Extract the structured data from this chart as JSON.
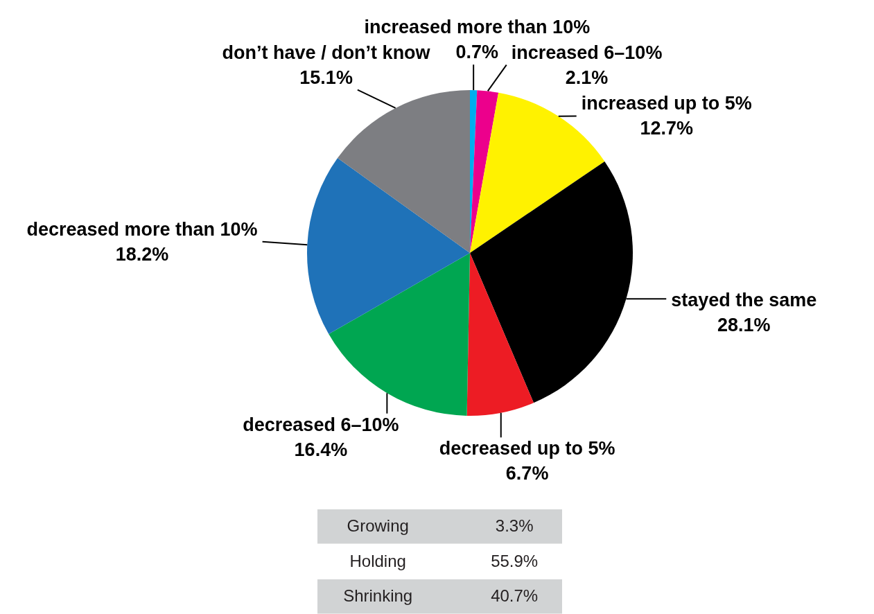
{
  "chart_data": [
    {
      "type": "pie",
      "categories": [
        "increased more than 10%",
        "increased 6–10%",
        "increased up to 5%",
        "stayed the same",
        "decreased up to 5%",
        "decreased 6–10%",
        "decreased more than 10%",
        "don’t have / don’t know"
      ],
      "values": [
        0.7,
        2.1,
        12.7,
        28.1,
        6.7,
        16.4,
        18.2,
        15.1
      ],
      "colors": [
        "#00aeef",
        "#ec008c",
        "#fff200",
        "#000000",
        "#ed1c24",
        "#00a651",
        "#1f72b8",
        "#7d7e82"
      ],
      "value_labels": [
        "0.7%",
        "2.1%",
        "12.7%",
        "28.1%",
        "6.7%",
        "16.4%",
        "18.2%",
        "15.1%"
      ]
    },
    {
      "type": "other",
      "categories": [
        "Growing",
        "Holding",
        "Shrinking"
      ],
      "values": [
        3.3,
        55.9,
        40.7
      ],
      "value_labels": [
        "3.3%",
        "55.9%",
        "40.7%"
      ]
    }
  ]
}
